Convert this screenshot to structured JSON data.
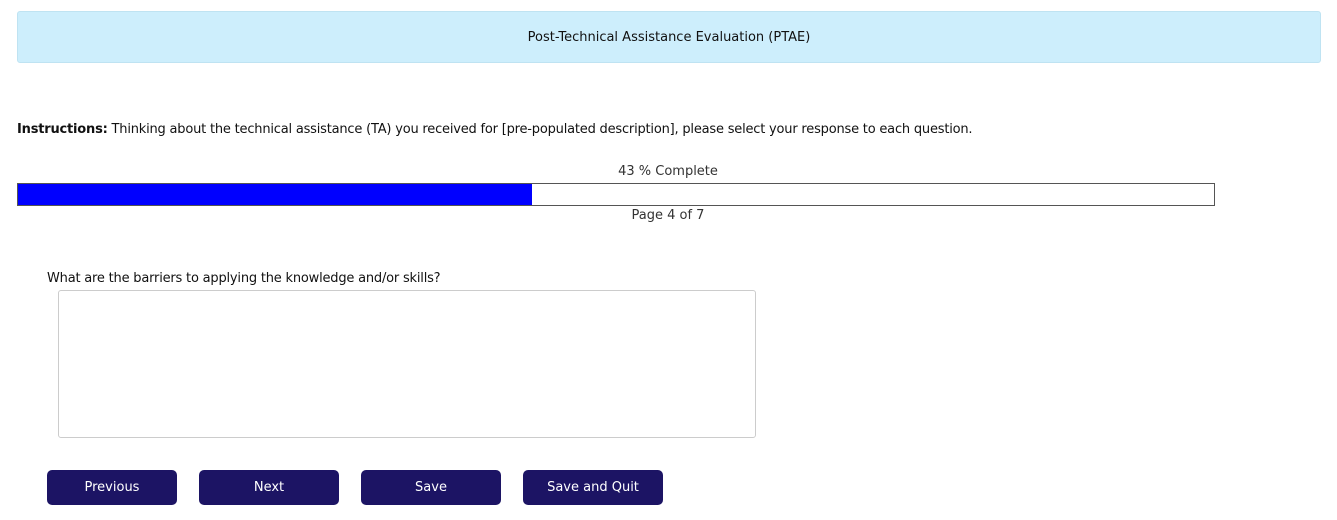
{
  "header": {
    "title": "Post-Technical Assistance Evaluation (PTAE)"
  },
  "instructions": {
    "label": "Instructions:",
    "text": " Thinking about the technical assistance (TA) you received for [pre-populated description], please select your response to each question."
  },
  "progress": {
    "percent": 43,
    "label": "43 % Complete",
    "page_label": "Page 4 of 7",
    "fill_color": "#0000ff"
  },
  "question": {
    "text": "What are the barriers to applying the knowledge and/or skills?",
    "value": ""
  },
  "buttons": {
    "previous": "Previous",
    "next": "Next",
    "save": "Save",
    "save_quit": "Save and Quit",
    "color": "#1c1464"
  },
  "colors": {
    "header_bg": "#cdeefc"
  }
}
